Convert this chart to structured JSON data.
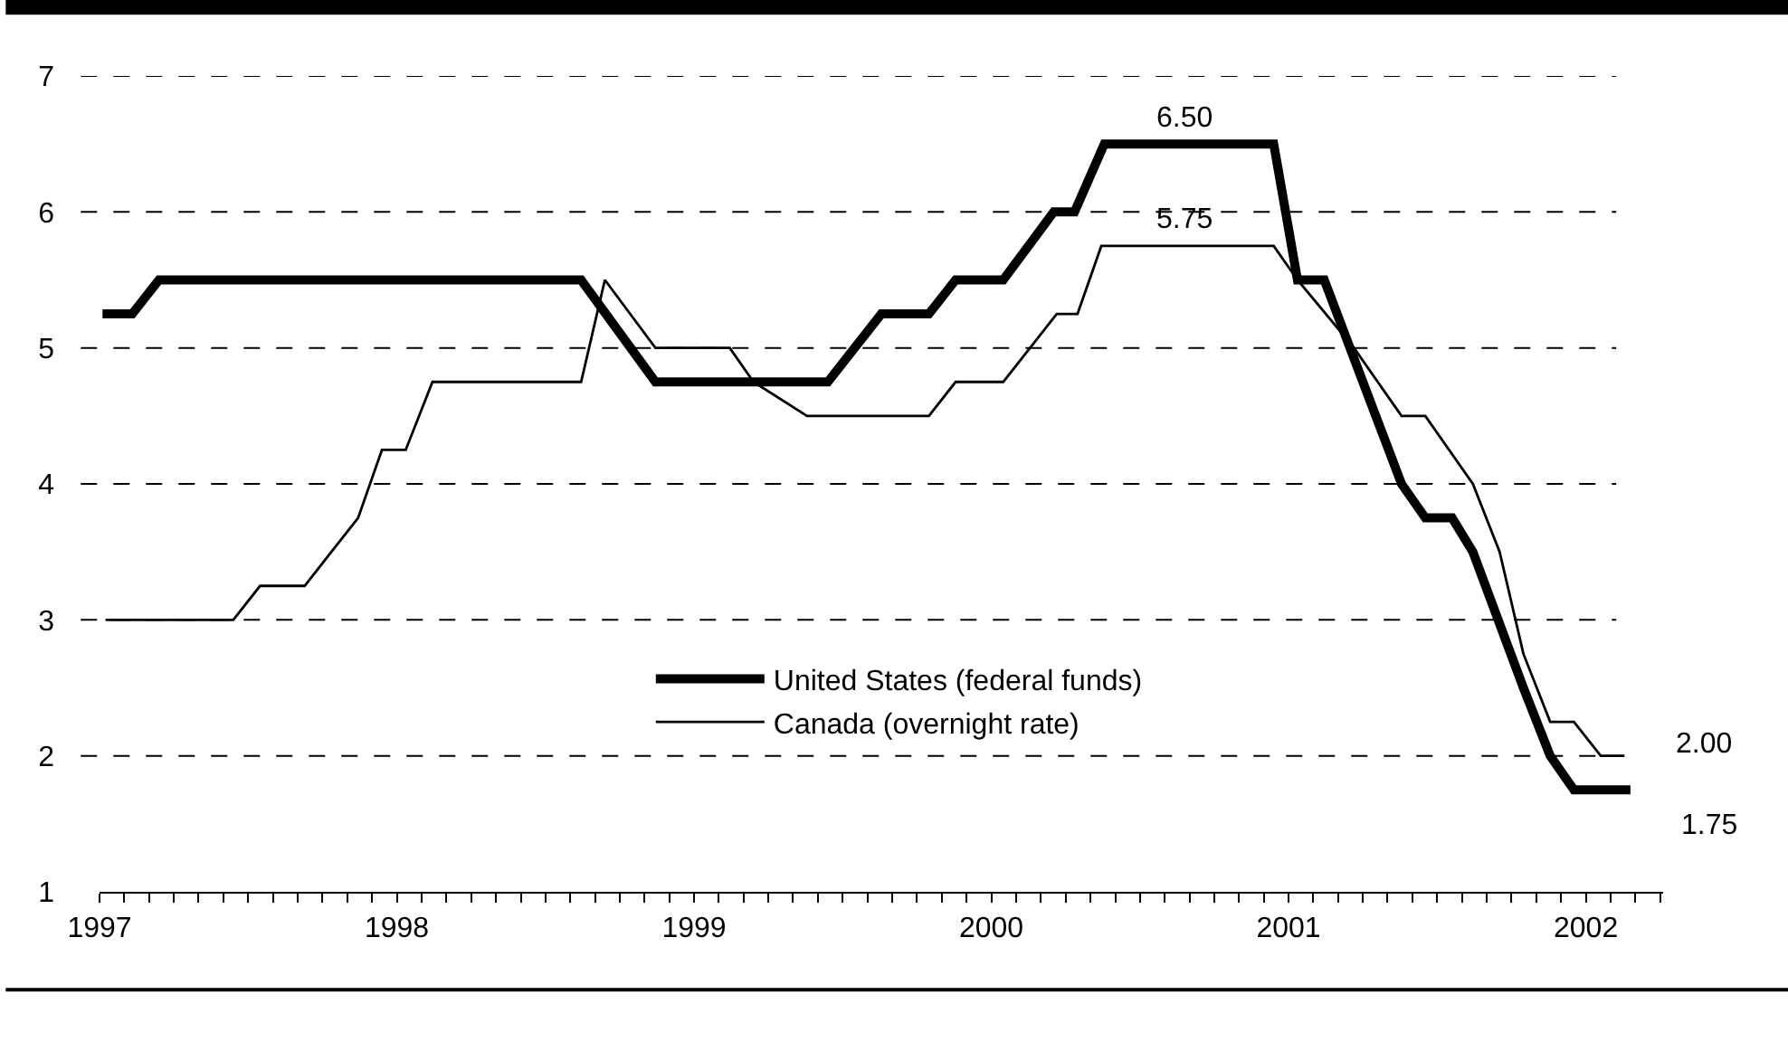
{
  "chart_data": {
    "type": "line",
    "series": [
      {
        "name": "United States (federal funds)",
        "color": "#000000",
        "x": [
          1997.01,
          1997.11,
          1997.2,
          1998.62,
          1998.87,
          1999.45,
          1999.63,
          1999.79,
          1999.88,
          2000.04,
          2000.21,
          2000.28,
          2000.38,
          2000.95,
          2001.03,
          2001.12,
          2001.38,
          2001.46,
          2001.55,
          2001.62,
          2001.79,
          2001.88,
          2001.96,
          2002.15
        ],
        "values": [
          5.25,
          5.25,
          5.5,
          5.5,
          4.75,
          4.75,
          5.25,
          5.25,
          5.5,
          5.5,
          6.0,
          6.0,
          6.5,
          6.5,
          5.5,
          5.5,
          4.0,
          3.75,
          3.75,
          3.5,
          2.5,
          2.0,
          1.75,
          1.75
        ]
      },
      {
        "name": "Canada (overnight rate)",
        "color": "#000000",
        "x": [
          1997.02,
          1997.45,
          1997.54,
          1997.69,
          1997.78,
          1997.87,
          1997.95,
          1998.03,
          1998.12,
          1998.62,
          1998.7,
          1998.87,
          1999.12,
          1999.2,
          1999.38,
          1999.79,
          1999.88,
          2000.04,
          2000.22,
          2000.29,
          2000.37,
          2000.95,
          2001.03,
          2001.22,
          2001.38,
          2001.46,
          2001.62,
          2001.71,
          2001.79,
          2001.88,
          2001.96,
          2002.05,
          2002.13
        ],
        "values": [
          3.0,
          3.0,
          3.25,
          3.25,
          3.5,
          3.75,
          4.25,
          4.25,
          4.75,
          4.75,
          5.5,
          5.0,
          5.0,
          4.75,
          4.5,
          4.5,
          4.75,
          4.75,
          5.25,
          5.25,
          5.75,
          5.75,
          5.5,
          5.0,
          4.5,
          4.5,
          4.0,
          3.5,
          2.75,
          2.25,
          2.25,
          2.0,
          2.0
        ]
      }
    ],
    "xlim": [
      1997,
      2002.26
    ],
    "xticks": [
      1997,
      1998,
      1999,
      2000,
      2001,
      2002,
      {
        "value": 1997.083,
        "label": null
      },
      {
        "value": 1997.167,
        "label": null
      },
      {
        "value": 1997.25,
        "label": null
      },
      {
        "value": 1997.333,
        "label": null
      },
      {
        "value": 1997.417,
        "label": null
      },
      {
        "value": 1997.5,
        "label": null
      },
      {
        "value": 1997.583,
        "label": null
      },
      {
        "value": 1997.667,
        "label": null
      },
      {
        "value": 1997.75,
        "label": null
      },
      {
        "value": 1997.833,
        "label": null
      },
      {
        "value": 1997.917,
        "label": null
      },
      {
        "value": 1998.083,
        "label": null
      },
      {
        "value": 1998.167,
        "label": null
      },
      {
        "value": 1998.25,
        "label": null
      },
      {
        "value": 1998.333,
        "label": null
      },
      {
        "value": 1998.417,
        "label": null
      },
      {
        "value": 1998.5,
        "label": null
      },
      {
        "value": 1998.583,
        "label": null
      },
      {
        "value": 1998.667,
        "label": null
      },
      {
        "value": 1998.75,
        "label": null
      },
      {
        "value": 1998.833,
        "label": null
      },
      {
        "value": 1998.917,
        "label": null
      },
      {
        "value": 1999.083,
        "label": null
      },
      {
        "value": 1999.167,
        "label": null
      },
      {
        "value": 1999.25,
        "label": null
      },
      {
        "value": 1999.333,
        "label": null
      },
      {
        "value": 1999.417,
        "label": null
      },
      {
        "value": 1999.5,
        "label": null
      },
      {
        "value": 1999.583,
        "label": null
      },
      {
        "value": 1999.667,
        "label": null
      },
      {
        "value": 1999.75,
        "label": null
      },
      {
        "value": 1999.833,
        "label": null
      },
      {
        "value": 1999.917,
        "label": null
      },
      {
        "value": 2000.083,
        "label": null
      },
      {
        "value": 2000.167,
        "label": null
      },
      {
        "value": 2000.25,
        "label": null
      },
      {
        "value": 2000.333,
        "label": null
      },
      {
        "value": 2000.417,
        "label": null
      },
      {
        "value": 2000.5,
        "label": null
      },
      {
        "value": 2000.583,
        "label": null
      },
      {
        "value": 2000.667,
        "label": null
      },
      {
        "value": 2000.75,
        "label": null
      },
      {
        "value": 2000.833,
        "label": null
      },
      {
        "value": 2000.917,
        "label": null
      },
      {
        "value": 2001.083,
        "label": null
      },
      {
        "value": 2001.167,
        "label": null
      },
      {
        "value": 2001.25,
        "label": null
      },
      {
        "value": 2001.333,
        "label": null
      },
      {
        "value": 2001.417,
        "label": null
      },
      {
        "value": 2001.5,
        "label": null
      },
      {
        "value": 2001.583,
        "label": null
      },
      {
        "value": 2001.667,
        "label": null
      },
      {
        "value": 2001.75,
        "label": null
      },
      {
        "value": 2001.833,
        "label": null
      },
      {
        "value": 2001.917,
        "label": null
      },
      {
        "value": 2002.083,
        "label": null
      },
      {
        "value": 2002.167,
        "label": null
      },
      {
        "value": 2002.25,
        "label": null
      }
    ],
    "ylim": [
      1,
      7
    ],
    "yticks": [
      1,
      2,
      3,
      4,
      5,
      6,
      7
    ],
    "grid": "y",
    "legend": "bottom",
    "marker": "none",
    "line_style": "solid",
    "annotations": [
      {
        "text": "6.50",
        "x": 2000.65,
        "y": 6.5
      },
      {
        "text": "5.75",
        "x": 2000.65,
        "y": 5.75
      },
      {
        "text": "2.00",
        "x": 2002.13,
        "y": 2.0
      },
      {
        "text": "1.75",
        "x": 2002.15,
        "y": 1.75
      }
    ]
  }
}
